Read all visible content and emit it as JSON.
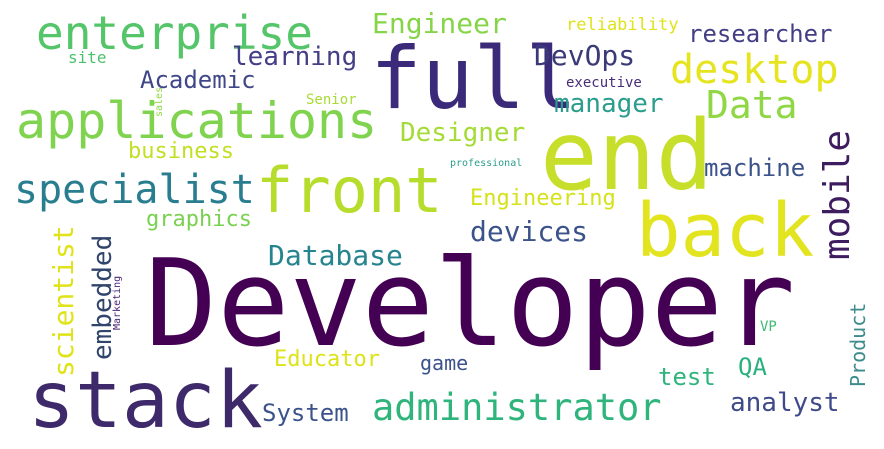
{
  "words": {
    "developer": {
      "text": "Developer",
      "color": "#440154"
    },
    "stack": {
      "text": "stack",
      "color": "#3e2a6b"
    },
    "full": {
      "text": "full",
      "color": "#3b2a79"
    },
    "end": {
      "text": "end",
      "color": "#c7df2a"
    },
    "back": {
      "text": "back",
      "color": "#e3e420"
    },
    "front": {
      "text": "front",
      "color": "#b6dc2c"
    },
    "applications": {
      "text": "applications",
      "color": "#7fd34e"
    },
    "enterprise": {
      "text": "enterprise",
      "color": "#54c568"
    },
    "specialist": {
      "text": "specialist",
      "color": "#287e8e"
    },
    "desktop": {
      "text": "desktop",
      "color": "#e6e41f"
    },
    "data": {
      "text": "Data",
      "color": "#8fd744"
    },
    "administrator": {
      "text": "administrator",
      "color": "#2fb47c"
    },
    "mobile": {
      "text": "mobile",
      "color": "#3d1d5f"
    },
    "devops": {
      "text": "DevOps",
      "color": "#3b3a78"
    },
    "engineer": {
      "text": "Engineer",
      "color": "#86d549"
    },
    "researcher": {
      "text": "researcher",
      "color": "#433e85"
    },
    "learning": {
      "text": "learning",
      "color": "#433e85"
    },
    "academic": {
      "text": "Academic",
      "color": "#3f4788"
    },
    "manager": {
      "text": "manager",
      "color": "#2a9d8c"
    },
    "designer": {
      "text": "Designer",
      "color": "#a5db36"
    },
    "business": {
      "text": "business",
      "color": "#c2df23"
    },
    "machine": {
      "text": "machine",
      "color": "#3b528b"
    },
    "engineering": {
      "text": "Engineering",
      "color": "#d5e21a"
    },
    "graphics": {
      "text": "graphics",
      "color": "#7ad151"
    },
    "devices": {
      "text": "devices",
      "color": "#3b528b"
    },
    "database": {
      "text": "Database",
      "color": "#25848e"
    },
    "scientist": {
      "text": "scientist",
      "color": "#dfe318"
    },
    "embedded": {
      "text": "embedded",
      "color": "#31446b"
    },
    "educator": {
      "text": "Educator",
      "color": "#dde318"
    },
    "game": {
      "text": "game",
      "color": "#3b528b"
    },
    "qa": {
      "text": "QA",
      "color": "#2ab07f"
    },
    "test": {
      "text": "test",
      "color": "#2fb47c"
    },
    "analyst": {
      "text": "analyst",
      "color": "#3e4a89"
    },
    "system": {
      "text": "System",
      "color": "#3b528b"
    },
    "product": {
      "text": "Product",
      "color": "#3d8b8c"
    },
    "reliability": {
      "text": "reliability",
      "color": "#dfe318"
    },
    "site": {
      "text": "site",
      "color": "#4ac16d"
    },
    "executive": {
      "text": "executive",
      "color": "#472d7b"
    },
    "senior": {
      "text": "Senior",
      "color": "#a8db34"
    },
    "sales": {
      "text": "sales",
      "color": "#8fd744"
    },
    "professional": {
      "text": "professional",
      "color": "#2a9d8c"
    },
    "marketing": {
      "text": "Marketing",
      "color": "#482576"
    },
    "vp": {
      "text": "VP",
      "color": "#3fbc73"
    }
  }
}
